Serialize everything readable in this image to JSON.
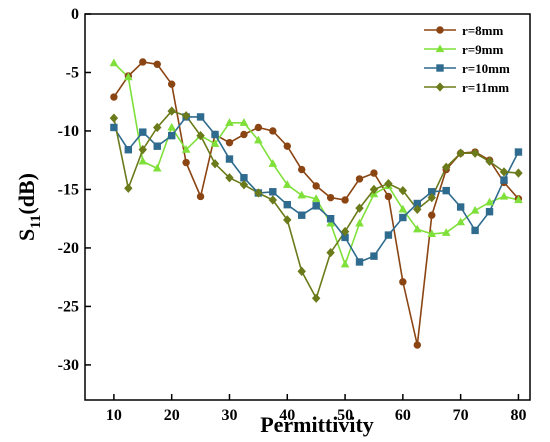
{
  "chart_data": {
    "type": "line",
    "title": "",
    "xlabel": "Permittivity",
    "ylabel_main": "S",
    "ylabel_sub": "11",
    "ylabel_unit": "(dB)",
    "xlim": [
      5,
      82
    ],
    "ylim": [
      -33,
      0
    ],
    "xticks": [
      10,
      20,
      30,
      40,
      50,
      60,
      70,
      80
    ],
    "yticks": [
      0,
      -5,
      -10,
      -15,
      -20,
      -25,
      -30
    ],
    "grid": false,
    "legend_position": "top-right",
    "series": [
      {
        "name": "r=8mm",
        "color": "#8B4513",
        "marker": "circle",
        "x": [
          10,
          12.5,
          15,
          17.5,
          20,
          22.5,
          25,
          27.5,
          30,
          32.5,
          35,
          37.5,
          40,
          42.5,
          45,
          47.5,
          50,
          52.5,
          55,
          57.5,
          60,
          62.5,
          65,
          67.5,
          70,
          72.5,
          75,
          77.5,
          80
        ],
        "values": [
          -7.1,
          -5.3,
          -4.1,
          -4.3,
          -6.0,
          -12.7,
          -15.6,
          -10.3,
          -11.0,
          -10.3,
          -9.7,
          -10.0,
          -11.3,
          -13.3,
          -14.7,
          -15.7,
          -15.9,
          -14.1,
          -13.6,
          -15.6,
          -22.9,
          -28.3,
          -17.2,
          -13.3,
          -11.9,
          -11.8,
          -12.5,
          -14.4,
          -15.8
        ]
      },
      {
        "name": "r=9mm",
        "color": "#7FE03A",
        "marker": "triangle",
        "x": [
          10,
          12.5,
          15,
          17.5,
          20,
          22.5,
          25,
          27.5,
          30,
          32.5,
          35,
          37.5,
          40,
          42.5,
          45,
          47.5,
          50,
          52.5,
          55,
          57.5,
          60,
          62.5,
          65,
          67.5,
          70,
          72.5,
          75,
          77.5,
          80
        ],
        "values": [
          -4.2,
          -5.4,
          -12.6,
          -13.2,
          -9.7,
          -11.6,
          -10.4,
          -11.1,
          -9.3,
          -9.3,
          -10.8,
          -12.8,
          -14.6,
          -15.5,
          -15.8,
          -17.9,
          -21.4,
          -17.9,
          -15.4,
          -14.7,
          -16.7,
          -18.4,
          -18.8,
          -18.7,
          -17.8,
          -16.8,
          -16.1,
          -15.6,
          -15.9
        ]
      },
      {
        "name": "r=10mm",
        "color": "#2F6B8E",
        "marker": "square",
        "x": [
          10,
          12.5,
          15,
          17.5,
          20,
          22.5,
          25,
          27.5,
          30,
          32.5,
          35,
          37.5,
          40,
          42.5,
          45,
          47.5,
          50,
          52.5,
          55,
          57.5,
          60,
          62.5,
          65,
          67.5,
          70,
          72.5,
          75,
          77.5,
          80
        ],
        "values": [
          -9.7,
          -11.6,
          -10.1,
          -11.3,
          -10.4,
          -8.8,
          -8.8,
          -10.3,
          -12.4,
          -14.0,
          -15.3,
          -15.2,
          -16.3,
          -17.2,
          -16.4,
          -17.5,
          -19.1,
          -21.2,
          -20.7,
          -18.9,
          -17.4,
          -16.2,
          -15.2,
          -15.1,
          -16.5,
          -18.5,
          -16.9,
          -14.2,
          -11.8
        ]
      },
      {
        "name": "r=11mm",
        "color": "#6B7A1A",
        "marker": "diamond",
        "x": [
          10,
          12.5,
          15,
          17.5,
          20,
          22.5,
          25,
          27.5,
          30,
          32.5,
          35,
          37.5,
          40,
          42.5,
          45,
          47.5,
          50,
          52.5,
          55,
          57.5,
          60,
          62.5,
          65,
          67.5,
          70,
          72.5,
          75,
          77.5,
          80
        ],
        "values": [
          -8.9,
          -14.9,
          -11.6,
          -9.7,
          -8.3,
          -8.7,
          -10.4,
          -12.8,
          -14.0,
          -14.6,
          -15.3,
          -15.9,
          -17.6,
          -22.0,
          -24.3,
          -20.4,
          -18.6,
          -16.6,
          -15.0,
          -14.5,
          -15.1,
          -16.7,
          -15.7,
          -13.1,
          -11.9,
          -11.9,
          -12.6,
          -13.5,
          -13.6
        ]
      }
    ]
  }
}
